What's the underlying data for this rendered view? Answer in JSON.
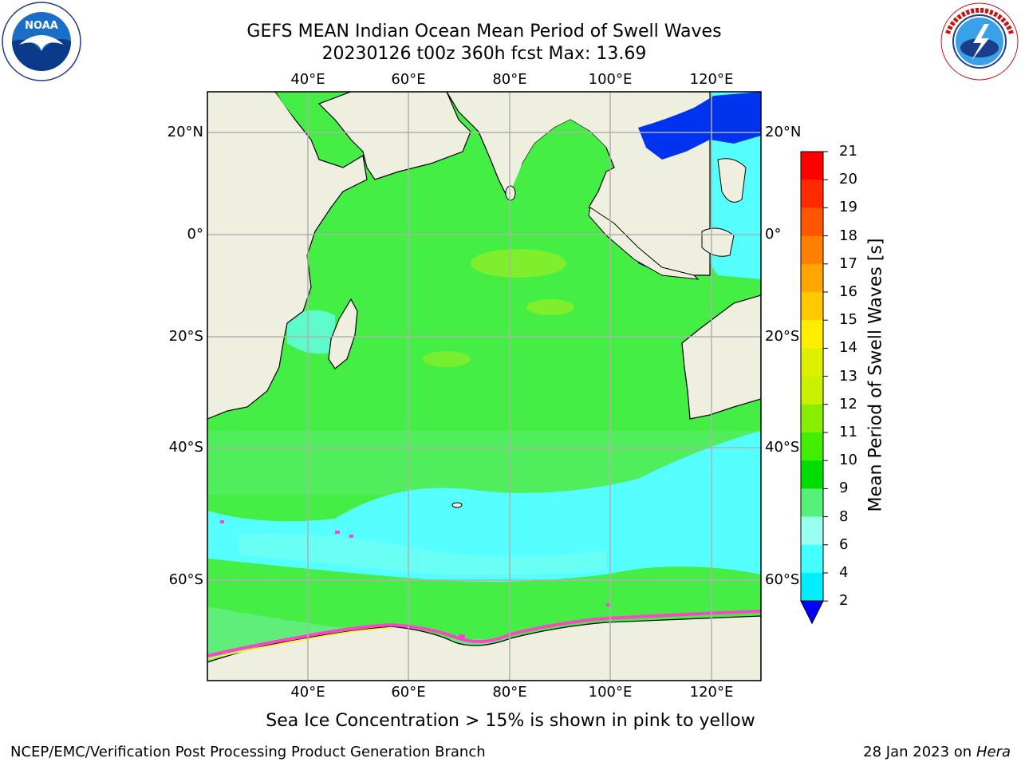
{
  "header": {
    "title_line1": "GEFS MEAN Indian Ocean Mean Period of Swell Waves",
    "title_line2": "20230126 t00z 360h fcst   Max: 13.69"
  },
  "logos": {
    "left": "noara-logo-icon",
    "right": "nws-logo-icon",
    "noaa_text": "NOAA",
    "noaa_ring_text": "NATIONAL OCEANIC AND ATMOSPHERIC ADMINISTRATION",
    "noaa_ring_bottom": "U.S. DEPARTMENT OF COMMERCE",
    "nws_ring_text": "NATIONAL WEATHER SERVICE"
  },
  "map": {
    "lon_labels": [
      "40°E",
      "60°E",
      "80°E",
      "100°E",
      "120°E"
    ],
    "lat_labels": [
      "20°N",
      "0°",
      "20°S",
      "40°S",
      "60°S"
    ],
    "colors": {
      "land": "#efefe0",
      "grid": "#b0b0b0",
      "ocean_green": "#44f044",
      "ocean_light_green": "#66ee77",
      "ocean_cyan": "#55ffff",
      "ocean_blue": "#0000ee",
      "ice_pink": "#ff44cc"
    }
  },
  "colorbar": {
    "title": "Mean Period of Swell Waves [s]",
    "labels": [
      "21",
      "20",
      "19",
      "18",
      "17",
      "16",
      "15",
      "14",
      "13",
      "12",
      "11",
      "10",
      "9",
      "8",
      "6",
      "4",
      "2"
    ],
    "colors": [
      "#ff0000",
      "#ff2a00",
      "#ff5500",
      "#ff7f00",
      "#ffa500",
      "#ffc800",
      "#ffee00",
      "#ddf000",
      "#c8f000",
      "#88ee00",
      "#44ee00",
      "#00dd00",
      "#55f077",
      "#99ffee",
      "#44ffff",
      "#00eeff",
      "#0077ff"
    ],
    "extend_color": "#0000ff"
  },
  "caption": "Sea Ice Concentration > 15% is shown in pink to yellow",
  "footer": {
    "left": "NCEP/EMC/Verification Post Processing Product Generation Branch",
    "right_date": "28 Jan 2023 on ",
    "right_host": "Hera"
  }
}
